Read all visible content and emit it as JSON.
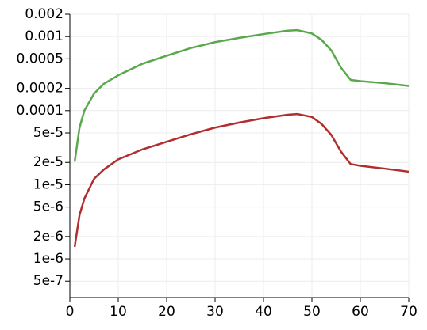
{
  "chart_data": {
    "type": "line",
    "x": [
      1,
      2,
      3,
      5,
      7,
      10,
      15,
      20,
      25,
      30,
      35,
      40,
      45,
      47,
      50,
      52,
      54,
      56,
      58,
      60,
      65,
      70
    ],
    "series": [
      {
        "color": "#5aa84c",
        "values": [
          2.05e-05,
          5.9e-05,
          0.0001,
          0.00017,
          0.00023,
          0.0003,
          0.00043,
          0.00055,
          0.0007,
          0.00084,
          0.00096,
          0.00108,
          0.0012,
          0.00122,
          0.0011,
          0.0009,
          0.00065,
          0.00038,
          0.00026,
          0.00025,
          0.000235,
          0.000216
        ]
      },
      {
        "color": "#b22d2d",
        "values": [
          1.45e-06,
          3.9e-06,
          6.5e-06,
          1.2e-05,
          1.6e-05,
          2.2e-05,
          3e-05,
          3.8e-05,
          4.8e-05,
          5.9e-05,
          6.9e-05,
          7.9e-05,
          8.8e-05,
          9e-05,
          8.2e-05,
          6.6e-05,
          4.7e-05,
          2.8e-05,
          1.9e-05,
          1.8e-05,
          1.65e-05,
          1.5e-05
        ]
      }
    ],
    "xlim": [
      0,
      70
    ],
    "xticks": [
      0,
      10,
      20,
      30,
      40,
      50,
      60,
      70
    ],
    "ylim": [
      3e-07,
      0.002
    ],
    "log_y": true,
    "grid": true,
    "yticks": [
      0.002,
      0.001,
      0.0005,
      0.0002,
      0.0001,
      {
        "value": 5e-05,
        "label": "5e-5"
      },
      {
        "value": 2e-05,
        "label": "2e-5"
      },
      {
        "value": 1e-05,
        "label": "1e-5"
      },
      {
        "value": 5e-06,
        "label": "5e-6"
      },
      {
        "value": 2e-06,
        "label": "2e-6"
      },
      {
        "value": 1e-06,
        "label": "1e-6"
      },
      {
        "value": 5e-07,
        "label": "5e-7"
      }
    ]
  }
}
